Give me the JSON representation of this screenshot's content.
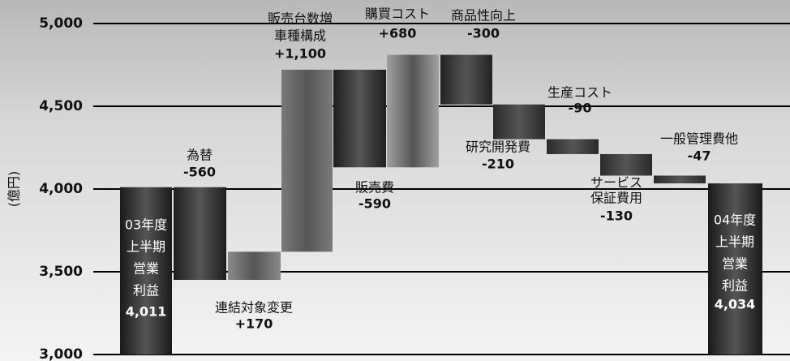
{
  "chart_data": {
    "type": "waterfall",
    "y_label": "(億円)",
    "categories": [
      [
        "03年度",
        "上半期",
        "営業",
        "利益"
      ],
      [
        "為替"
      ],
      [
        "連結対象変更"
      ],
      [
        "販売台数増",
        "車種構成"
      ],
      [
        "販売費"
      ],
      [
        "購買コスト"
      ],
      [
        "商品性向上"
      ],
      [
        "研究開発費"
      ],
      [
        "生産コスト"
      ],
      [
        "サービス",
        "保証費用"
      ],
      [
        "一般管理費他"
      ],
      [
        "04年度",
        "上半期",
        "営業",
        "利益"
      ]
    ],
    "values": [
      4011,
      -560,
      170,
      1100,
      -590,
      680,
      -300,
      -210,
      -90,
      -130,
      -47,
      4034
    ],
    "value_labels": [
      "4,011",
      "-560",
      "+170",
      "+1,100",
      "-590",
      "+680",
      "-300",
      "-210",
      "-90",
      "-130",
      "-47",
      "4,034"
    ],
    "colors": [
      "#1a1a1a",
      "#1e1e1e",
      "#8a8a8a",
      "#7a7a7a",
      "#1e1e1e",
      "#a0a0a0",
      "#222222",
      "#2a2a2a",
      "#2a2a2a",
      "#2a2a2a",
      "#2a2a2a",
      "#1a1a1a"
    ],
    "ylim": [
      3000,
      5000
    ],
    "yticks": [
      {
        "value": 3000,
        "label": "3,000"
      },
      {
        "value": 3500,
        "label": "3,500"
      },
      {
        "value": 4000,
        "label": "4,000"
      },
      {
        "value": 4500,
        "label": "4,500"
      },
      {
        "value": 5000,
        "label": "5,000"
      }
    ],
    "grid": true
  }
}
